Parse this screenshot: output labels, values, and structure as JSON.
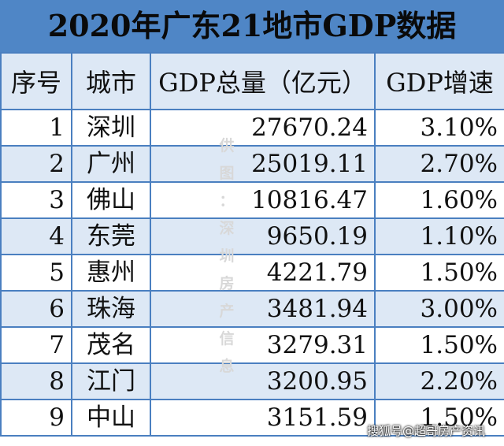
{
  "title": "2020年广东21地市GDP数据",
  "headers": [
    "序号",
    "城市",
    "GDP总量（亿元）",
    "GDP增速"
  ],
  "rows": [
    {
      "rank": "1",
      "city": "深圳",
      "gdp": "27670.24",
      "growth": "3.10%"
    },
    {
      "rank": "2",
      "city": "广州",
      "gdp": "25019.11",
      "growth": "2.70%"
    },
    {
      "rank": "3",
      "city": "佛山",
      "gdp": "10816.47",
      "growth": "1.60%"
    },
    {
      "rank": "4",
      "city": "东莞",
      "gdp": "9650.19",
      "growth": "1.10%"
    },
    {
      "rank": "5",
      "city": "惠州",
      "gdp": "4221.79",
      "growth": "1.50%"
    },
    {
      "rank": "6",
      "city": "珠海",
      "gdp": "3481.94",
      "growth": "3.00%"
    },
    {
      "rank": "7",
      "city": "茂名",
      "gdp": "3279.31",
      "growth": "1.50%"
    },
    {
      "rank": "8",
      "city": "江门",
      "gdp": "3200.95",
      "growth": "2.20%"
    },
    {
      "rank": "9",
      "city": "中山",
      "gdp": "3151.59",
      "growth": "1.50%"
    }
  ],
  "watermark_vertical": [
    "供",
    "图",
    "：",
    "深",
    "圳",
    "房",
    "产",
    "信",
    "息"
  ],
  "watermark_corner": "搜狐号@超哥房产资讯",
  "colors": {
    "header_band": "#4f86c6",
    "border": "#4a7fc0",
    "stripe": "#dde8f5"
  }
}
